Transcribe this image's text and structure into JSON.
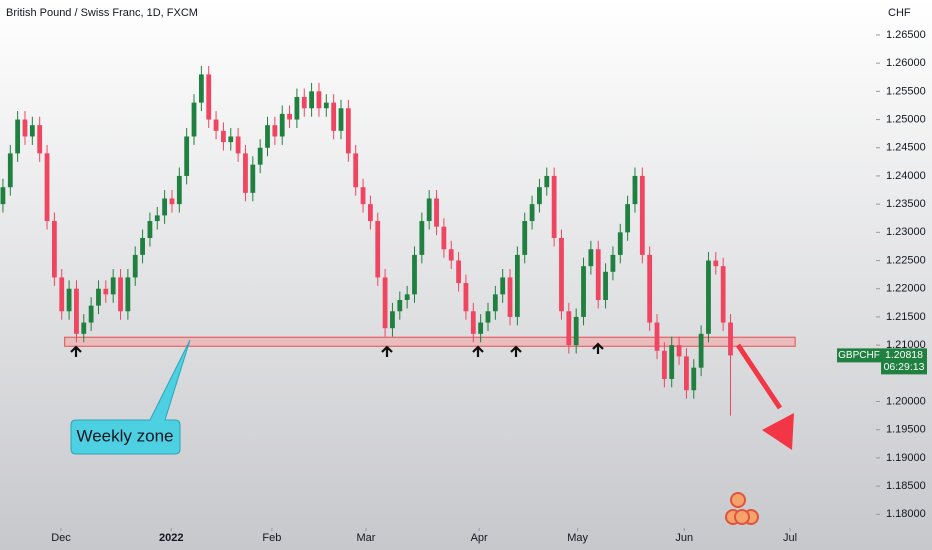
{
  "chart_data": {
    "type": "candlestick",
    "title": "British Pound / Swiss Franc, 1D, FXCM",
    "y_axis_label": "CHF",
    "annotation": "Weekly zone",
    "symbol": "GBPCHF",
    "last_price": 1.20818,
    "countdown": "06:29:13",
    "up_color": "#1f8040",
    "down_color": "#ef4560",
    "zone": {
      "top": 1.2114,
      "bottom": 1.2098,
      "x": [
        8.4,
        107.8
      ],
      "color": "#f3a6a6"
    },
    "xlim": [
      -0.4,
      117.3
    ],
    "ylim": [
      1.1781,
      1.2712
    ],
    "xticks": [
      {
        "value": 7.9,
        "label": "Dec"
      },
      {
        "value": 22.9,
        "label": "2022"
      },
      {
        "value": 36.6,
        "label": "Feb"
      },
      {
        "value": 49.4,
        "label": "Mar"
      },
      {
        "value": 64.8,
        "label": "Apr"
      },
      {
        "value": 78.2,
        "label": "May"
      },
      {
        "value": 92.7,
        "label": "Jun"
      },
      {
        "value": 107.1,
        "label": "Jul"
      }
    ],
    "yticks": [
      {
        "value": 1.265,
        "label": "1.26500"
      },
      {
        "value": 1.26,
        "label": "1.26000"
      },
      {
        "value": 1.255,
        "label": "1.25500"
      },
      {
        "value": 1.25,
        "label": "1.25000"
      },
      {
        "value": 1.245,
        "label": "1.24500"
      },
      {
        "value": 1.24,
        "label": "1.24000"
      },
      {
        "value": 1.235,
        "label": "1.23500"
      },
      {
        "value": 1.23,
        "label": "1.23000"
      },
      {
        "value": 1.225,
        "label": "1.22500"
      },
      {
        "value": 1.22,
        "label": "1.22000"
      },
      {
        "value": 1.215,
        "label": "1.21500"
      },
      {
        "value": 1.21,
        "label": "1.21000"
      },
      {
        "value": 1.2,
        "label": "1.20000"
      },
      {
        "value": 1.195,
        "label": "1.19500"
      },
      {
        "value": 1.19,
        "label": "1.19000"
      },
      {
        "value": 1.185,
        "label": "1.18500"
      },
      {
        "value": 1.18,
        "label": "1.18000"
      }
    ],
    "x": [
      0,
      1,
      2,
      3,
      4,
      5,
      6,
      7,
      8,
      9,
      10,
      11,
      12,
      13,
      14,
      15,
      16,
      17,
      18,
      19,
      20,
      21,
      22,
      23,
      24,
      25,
      26,
      27,
      28,
      29,
      30,
      31,
      32,
      33,
      34,
      35,
      36,
      37,
      38,
      39,
      40,
      41,
      42,
      43,
      44,
      45,
      46,
      47,
      48,
      49,
      50,
      51,
      52,
      53,
      54,
      55,
      56,
      57,
      58,
      59,
      60,
      61,
      62,
      63,
      64,
      65,
      66,
      67,
      68,
      69,
      70,
      71,
      72,
      73,
      74,
      75,
      76,
      77,
      78,
      79,
      80,
      81,
      82,
      83,
      84,
      85,
      86,
      87,
      88,
      89,
      90,
      91,
      92,
      93,
      94,
      95,
      96,
      97,
      98,
      99
    ],
    "open": [
      1.235,
      1.238,
      1.244,
      1.25,
      1.247,
      1.249,
      1.244,
      1.232,
      1.222,
      1.216,
      1.22,
      1.212,
      1.214,
      1.217,
      1.22,
      1.219,
      1.222,
      1.216,
      1.222,
      1.226,
      1.229,
      1.232,
      1.233,
      1.236,
      1.235,
      1.24,
      1.247,
      1.253,
      1.258,
      1.25,
      1.248,
      1.246,
      1.247,
      1.244,
      1.237,
      1.242,
      1.245,
      1.249,
      1.247,
      1.251,
      1.25,
      1.254,
      1.252,
      1.255,
      1.252,
      1.253,
      1.248,
      1.252,
      1.244,
      1.238,
      1.235,
      1.232,
      1.222,
      1.213,
      1.216,
      1.218,
      1.219,
      1.226,
      1.232,
      1.236,
      1.231,
      1.227,
      1.225,
      1.221,
      1.216,
      1.212,
      1.214,
      1.216,
      1.219,
      1.222,
      1.215,
      1.226,
      1.232,
      1.235,
      1.238,
      1.24,
      1.229,
      1.216,
      1.21,
      1.215,
      1.224,
      1.227,
      1.218,
      1.223,
      1.226,
      1.23,
      1.235,
      1.24,
      1.226,
      1.214,
      1.209,
      1.204,
      1.21,
      1.208,
      1.202,
      1.206,
      1.212,
      1.225,
      1.224,
      1.214
    ],
    "high": [
      1.2395,
      1.2455,
      1.2515,
      1.2515,
      1.2505,
      1.2505,
      1.2455,
      1.2335,
      1.2235,
      1.2215,
      1.2215,
      1.2155,
      1.2185,
      1.2215,
      1.2215,
      1.2235,
      1.2235,
      1.2235,
      1.2275,
      1.2305,
      1.2335,
      1.2345,
      1.2375,
      1.2375,
      1.2415,
      1.2485,
      1.2545,
      1.2595,
      1.2595,
      1.2515,
      1.2495,
      1.2485,
      1.2485,
      1.2455,
      1.2435,
      1.2465,
      1.2505,
      1.2505,
      1.2525,
      1.2525,
      1.2555,
      1.2555,
      1.2565,
      1.2565,
      1.2545,
      1.2545,
      1.2535,
      1.2535,
      1.2455,
      1.2395,
      1.2365,
      1.2335,
      1.2235,
      1.2175,
      1.2195,
      1.2205,
      1.2275,
      1.2335,
      1.2375,
      1.2375,
      1.2325,
      1.2285,
      1.2265,
      1.2225,
      1.2175,
      1.2155,
      1.2175,
      1.2205,
      1.2235,
      1.2235,
      1.2275,
      1.2335,
      1.2365,
      1.2395,
      1.2415,
      1.2415,
      1.2305,
      1.2175,
      1.2165,
      1.2255,
      1.2285,
      1.2285,
      1.2245,
      1.2275,
      1.2315,
      1.2365,
      1.2415,
      1.2415,
      1.2275,
      1.2155,
      1.2105,
      1.2115,
      1.2115,
      1.2095,
      1.2075,
      1.2135,
      1.2265,
      1.2265,
      1.2255,
      1.2155
    ],
    "low": [
      1.2335,
      1.2365,
      1.2425,
      1.2455,
      1.2455,
      1.2425,
      1.2305,
      1.2205,
      1.2145,
      1.2145,
      1.2105,
      1.2105,
      1.2125,
      1.2155,
      1.2175,
      1.2175,
      1.2145,
      1.2145,
      1.2205,
      1.2245,
      1.2275,
      1.2305,
      1.2315,
      1.2335,
      1.2335,
      1.2385,
      1.2455,
      1.2515,
      1.2485,
      1.2465,
      1.2445,
      1.2445,
      1.2425,
      1.2355,
      1.2355,
      1.2405,
      1.2435,
      1.2455,
      1.2455,
      1.2485,
      1.2485,
      1.2505,
      1.2505,
      1.2505,
      1.2505,
      1.2465,
      1.2465,
      1.2425,
      1.2365,
      1.2335,
      1.2305,
      1.2205,
      1.2115,
      1.2115,
      1.2145,
      1.2165,
      1.2175,
      1.2245,
      1.2305,
      1.2295,
      1.2255,
      1.2235,
      1.2195,
      1.2145,
      1.2105,
      1.2105,
      1.2125,
      1.2145,
      1.2175,
      1.2135,
      1.2135,
      1.2245,
      1.2305,
      1.2335,
      1.2365,
      1.2275,
      1.2145,
      1.2085,
      1.2085,
      1.2135,
      1.2225,
      1.2165,
      1.2165,
      1.2215,
      1.2245,
      1.2285,
      1.2335,
      1.2245,
      1.2125,
      1.2075,
      1.2025,
      1.2025,
      1.2065,
      1.2005,
      1.2005,
      1.2045,
      1.2105,
      1.2225,
      1.2125,
      1.1975
    ],
    "close": [
      1.238,
      1.244,
      1.25,
      1.247,
      1.249,
      1.244,
      1.232,
      1.222,
      1.216,
      1.22,
      1.212,
      1.214,
      1.217,
      1.22,
      1.219,
      1.222,
      1.216,
      1.222,
      1.226,
      1.229,
      1.232,
      1.233,
      1.236,
      1.235,
      1.24,
      1.247,
      1.253,
      1.258,
      1.25,
      1.248,
      1.246,
      1.247,
      1.244,
      1.237,
      1.242,
      1.245,
      1.249,
      1.247,
      1.251,
      1.25,
      1.254,
      1.252,
      1.255,
      1.252,
      1.253,
      1.248,
      1.252,
      1.244,
      1.238,
      1.235,
      1.232,
      1.222,
      1.213,
      1.216,
      1.218,
      1.219,
      1.226,
      1.232,
      1.236,
      1.231,
      1.227,
      1.225,
      1.221,
      1.216,
      1.212,
      1.214,
      1.216,
      1.219,
      1.222,
      1.215,
      1.226,
      1.232,
      1.235,
      1.238,
      1.24,
      1.229,
      1.216,
      1.21,
      1.215,
      1.224,
      1.227,
      1.218,
      1.223,
      1.226,
      1.23,
      1.235,
      1.24,
      1.226,
      1.214,
      1.209,
      1.204,
      1.21,
      1.208,
      1.202,
      1.206,
      1.212,
      1.225,
      1.224,
      1.214,
      1.20818
    ]
  }
}
